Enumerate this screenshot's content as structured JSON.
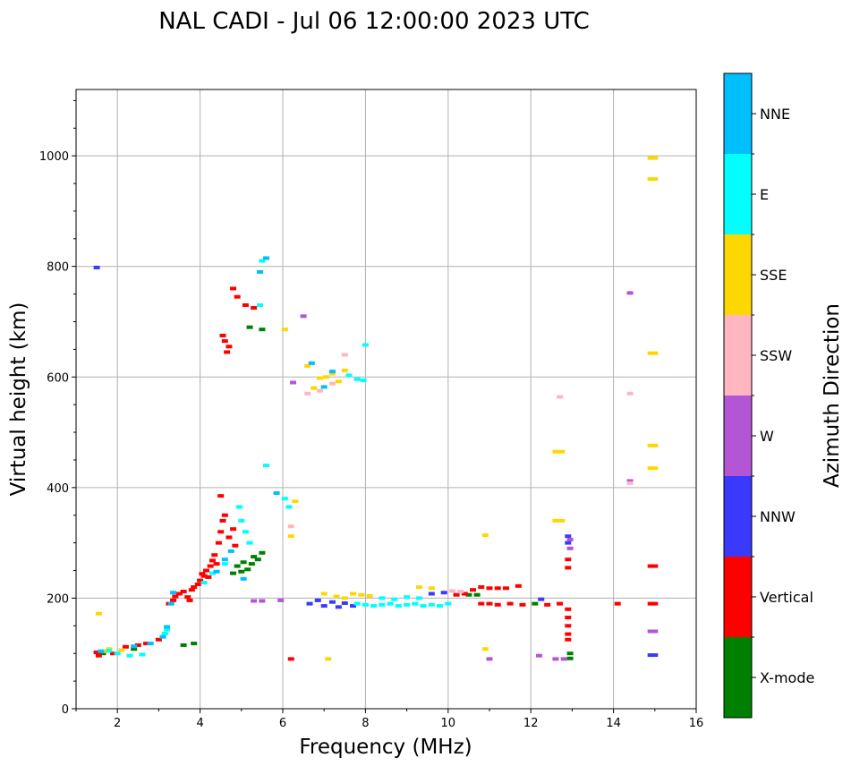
{
  "chart_data": {
    "type": "scatter",
    "title": "NAL CADI - Jul 06 12:00:00 2023 UTC",
    "xlabel": "Frequency (MHz)",
    "ylabel": "Virtual height (km)",
    "xlim": [
      1,
      16
    ],
    "ylim": [
      0,
      1120
    ],
    "xticks": [
      2,
      4,
      6,
      8,
      10,
      12,
      14,
      16
    ],
    "yticks": [
      0,
      200,
      400,
      600,
      800,
      1000
    ],
    "grid": true,
    "colorbar": {
      "label": "Azimuth Direction",
      "categories": [
        {
          "name": "X-mode",
          "color": "#008000"
        },
        {
          "name": "Vertical",
          "color": "#ff0000"
        },
        {
          "name": "NNW",
          "color": "#3a3aff"
        },
        {
          "name": "W",
          "color": "#b455d6"
        },
        {
          "name": "SSW",
          "color": "#ffb6c1"
        },
        {
          "name": "SSE",
          "color": "#ffd700"
        },
        {
          "name": "E",
          "color": "#00ffff"
        },
        {
          "name": "NNE",
          "color": "#00bfff"
        }
      ]
    },
    "series": [
      {
        "name": "X-mode",
        "points": [
          [
            1.65,
            100
          ],
          [
            2.4,
            108
          ],
          [
            3.6,
            115
          ],
          [
            3.85,
            118
          ],
          [
            4.8,
            245
          ],
          [
            4.9,
            258
          ],
          [
            5.0,
            248
          ],
          [
            5.05,
            265
          ],
          [
            5.15,
            252
          ],
          [
            5.25,
            262
          ],
          [
            5.3,
            275
          ],
          [
            5.4,
            270
          ],
          [
            5.5,
            282
          ],
          [
            5.2,
            690
          ],
          [
            5.5,
            686
          ],
          [
            10.5,
            206
          ],
          [
            10.7,
            206
          ],
          [
            12.1,
            190
          ],
          [
            12.95,
            100
          ],
          [
            12.95,
            91
          ]
        ]
      },
      {
        "name": "Vertical",
        "points": [
          [
            1.5,
            102
          ],
          [
            1.55,
            96
          ],
          [
            1.9,
            100
          ],
          [
            2.2,
            112
          ],
          [
            2.5,
            115
          ],
          [
            2.7,
            118
          ],
          [
            3.0,
            125
          ],
          [
            3.25,
            190
          ],
          [
            3.35,
            196
          ],
          [
            3.4,
            203
          ],
          [
            3.5,
            208
          ],
          [
            3.6,
            212
          ],
          [
            3.7,
            202
          ],
          [
            3.75,
            196
          ],
          [
            3.8,
            215
          ],
          [
            3.85,
            220
          ],
          [
            3.95,
            225
          ],
          [
            4.0,
            232
          ],
          [
            4.05,
            244
          ],
          [
            4.1,
            240
          ],
          [
            4.15,
            250
          ],
          [
            4.2,
            238
          ],
          [
            4.25,
            258
          ],
          [
            4.3,
            268
          ],
          [
            4.35,
            278
          ],
          [
            4.4,
            262
          ],
          [
            4.45,
            300
          ],
          [
            4.5,
            320
          ],
          [
            4.55,
            340
          ],
          [
            4.6,
            350
          ],
          [
            4.7,
            310
          ],
          [
            4.8,
            325
          ],
          [
            4.85,
            295
          ],
          [
            4.5,
            385
          ],
          [
            4.55,
            675
          ],
          [
            4.6,
            665
          ],
          [
            4.65,
            645
          ],
          [
            4.7,
            655
          ],
          [
            4.8,
            760
          ],
          [
            4.9,
            745
          ],
          [
            5.1,
            730
          ],
          [
            5.3,
            725
          ],
          [
            6.2,
            90
          ],
          [
            10.2,
            206
          ],
          [
            10.4,
            208
          ],
          [
            10.6,
            215
          ],
          [
            10.8,
            220
          ],
          [
            11.0,
            218
          ],
          [
            11.2,
            218
          ],
          [
            11.4,
            218
          ],
          [
            11.7,
            222
          ],
          [
            10.8,
            190
          ],
          [
            11.0,
            190
          ],
          [
            11.2,
            188
          ],
          [
            11.5,
            190
          ],
          [
            11.8,
            188
          ],
          [
            12.4,
            188
          ],
          [
            12.7,
            190
          ],
          [
            12.9,
            180
          ],
          [
            12.9,
            165
          ],
          [
            12.9,
            150
          ],
          [
            12.9,
            135
          ],
          [
            12.9,
            125
          ],
          [
            12.9,
            255
          ],
          [
            12.9,
            270
          ],
          [
            14.1,
            190
          ],
          [
            14.9,
            190
          ],
          [
            15.0,
            190
          ],
          [
            14.9,
            258
          ],
          [
            15.0,
            258
          ]
        ]
      },
      {
        "name": "NNW",
        "points": [
          [
            1.5,
            798
          ],
          [
            6.65,
            190
          ],
          [
            6.85,
            196
          ],
          [
            7.0,
            186
          ],
          [
            7.2,
            193
          ],
          [
            7.35,
            184
          ],
          [
            7.5,
            191
          ],
          [
            7.7,
            186
          ],
          [
            9.6,
            208
          ],
          [
            9.9,
            210
          ],
          [
            12.25,
            198
          ],
          [
            12.9,
            300
          ],
          [
            12.9,
            312
          ],
          [
            14.9,
            97
          ],
          [
            15.0,
            97
          ]
        ]
      },
      {
        "name": "W",
        "points": [
          [
            5.3,
            195
          ],
          [
            5.5,
            195
          ],
          [
            5.95,
            196
          ],
          [
            6.5,
            710
          ],
          [
            6.25,
            590
          ],
          [
            11.0,
            90
          ],
          [
            12.2,
            96
          ],
          [
            12.6,
            90
          ],
          [
            12.8,
            90
          ],
          [
            12.95,
            290
          ],
          [
            12.95,
            306
          ],
          [
            14.4,
            752
          ],
          [
            14.4,
            412
          ],
          [
            14.9,
            140
          ],
          [
            15.0,
            140
          ]
        ]
      },
      {
        "name": "SSW",
        "points": [
          [
            6.2,
            330
          ],
          [
            6.6,
            570
          ],
          [
            6.9,
            575
          ],
          [
            7.2,
            588
          ],
          [
            7.5,
            640
          ],
          [
            10.1,
            213
          ],
          [
            10.3,
            212
          ],
          [
            12.7,
            564
          ],
          [
            14.4,
            570
          ],
          [
            14.4,
            408
          ]
        ]
      },
      {
        "name": "SSE",
        "points": [
          [
            1.55,
            172
          ],
          [
            1.7,
            104
          ],
          [
            1.8,
            108
          ],
          [
            2.1,
            106
          ],
          [
            6.05,
            686
          ],
          [
            6.3,
            375
          ],
          [
            6.2,
            312
          ],
          [
            6.6,
            620
          ],
          [
            6.75,
            580
          ],
          [
            6.9,
            598
          ],
          [
            7.05,
            600
          ],
          [
            7.2,
            606
          ],
          [
            7.35,
            592
          ],
          [
            7.5,
            612
          ],
          [
            7.0,
            208
          ],
          [
            7.3,
            203
          ],
          [
            7.5,
            200
          ],
          [
            7.7,
            208
          ],
          [
            7.9,
            206
          ],
          [
            8.1,
            204
          ],
          [
            9.3,
            220
          ],
          [
            9.6,
            218
          ],
          [
            10.9,
            314
          ],
          [
            10.9,
            108
          ],
          [
            7.1,
            90
          ],
          [
            12.6,
            465
          ],
          [
            12.75,
            465
          ],
          [
            12.6,
            340
          ],
          [
            12.75,
            340
          ],
          [
            14.9,
            996
          ],
          [
            15.0,
            996
          ],
          [
            14.9,
            958
          ],
          [
            15.0,
            958
          ],
          [
            14.9,
            643
          ],
          [
            15.0,
            643
          ],
          [
            14.9,
            476
          ],
          [
            15.0,
            476
          ],
          [
            14.9,
            435
          ],
          [
            15.0,
            435
          ]
        ]
      },
      {
        "name": "E",
        "points": [
          [
            1.8,
            105
          ],
          [
            2.0,
            100
          ],
          [
            2.3,
            96
          ],
          [
            2.6,
            98
          ],
          [
            3.15,
            136
          ],
          [
            3.2,
            143
          ],
          [
            4.1,
            228
          ],
          [
            4.3,
            245
          ],
          [
            4.6,
            262
          ],
          [
            4.95,
            365
          ],
          [
            5.0,
            340
          ],
          [
            5.1,
            320
          ],
          [
            5.2,
            300
          ],
          [
            5.45,
            730
          ],
          [
            5.5,
            810
          ],
          [
            5.6,
            440
          ],
          [
            6.05,
            380
          ],
          [
            6.15,
            365
          ],
          [
            7.6,
            603
          ],
          [
            7.8,
            596
          ],
          [
            7.95,
            594
          ],
          [
            8.0,
            658
          ],
          [
            7.8,
            190
          ],
          [
            8.0,
            188
          ],
          [
            8.2,
            186
          ],
          [
            8.4,
            188
          ],
          [
            8.6,
            190
          ],
          [
            8.8,
            186
          ],
          [
            9.0,
            188
          ],
          [
            9.2,
            190
          ],
          [
            9.4,
            186
          ],
          [
            9.6,
            188
          ],
          [
            9.8,
            186
          ],
          [
            10.0,
            190
          ],
          [
            8.4,
            200
          ],
          [
            8.7,
            198
          ],
          [
            9.0,
            202
          ],
          [
            9.3,
            200
          ]
        ]
      },
      {
        "name": "NNE",
        "points": [
          [
            1.6,
            104
          ],
          [
            2.4,
            113
          ],
          [
            2.8,
            118
          ],
          [
            3.1,
            130
          ],
          [
            3.2,
            148
          ],
          [
            3.3,
            190
          ],
          [
            3.35,
            210
          ],
          [
            4.4,
            248
          ],
          [
            4.6,
            270
          ],
          [
            4.75,
            285
          ],
          [
            5.05,
            235
          ],
          [
            5.6,
            815
          ],
          [
            5.45,
            790
          ],
          [
            5.85,
            390
          ],
          [
            6.7,
            625
          ],
          [
            7.0,
            582
          ],
          [
            7.2,
            610
          ]
        ]
      }
    ]
  }
}
